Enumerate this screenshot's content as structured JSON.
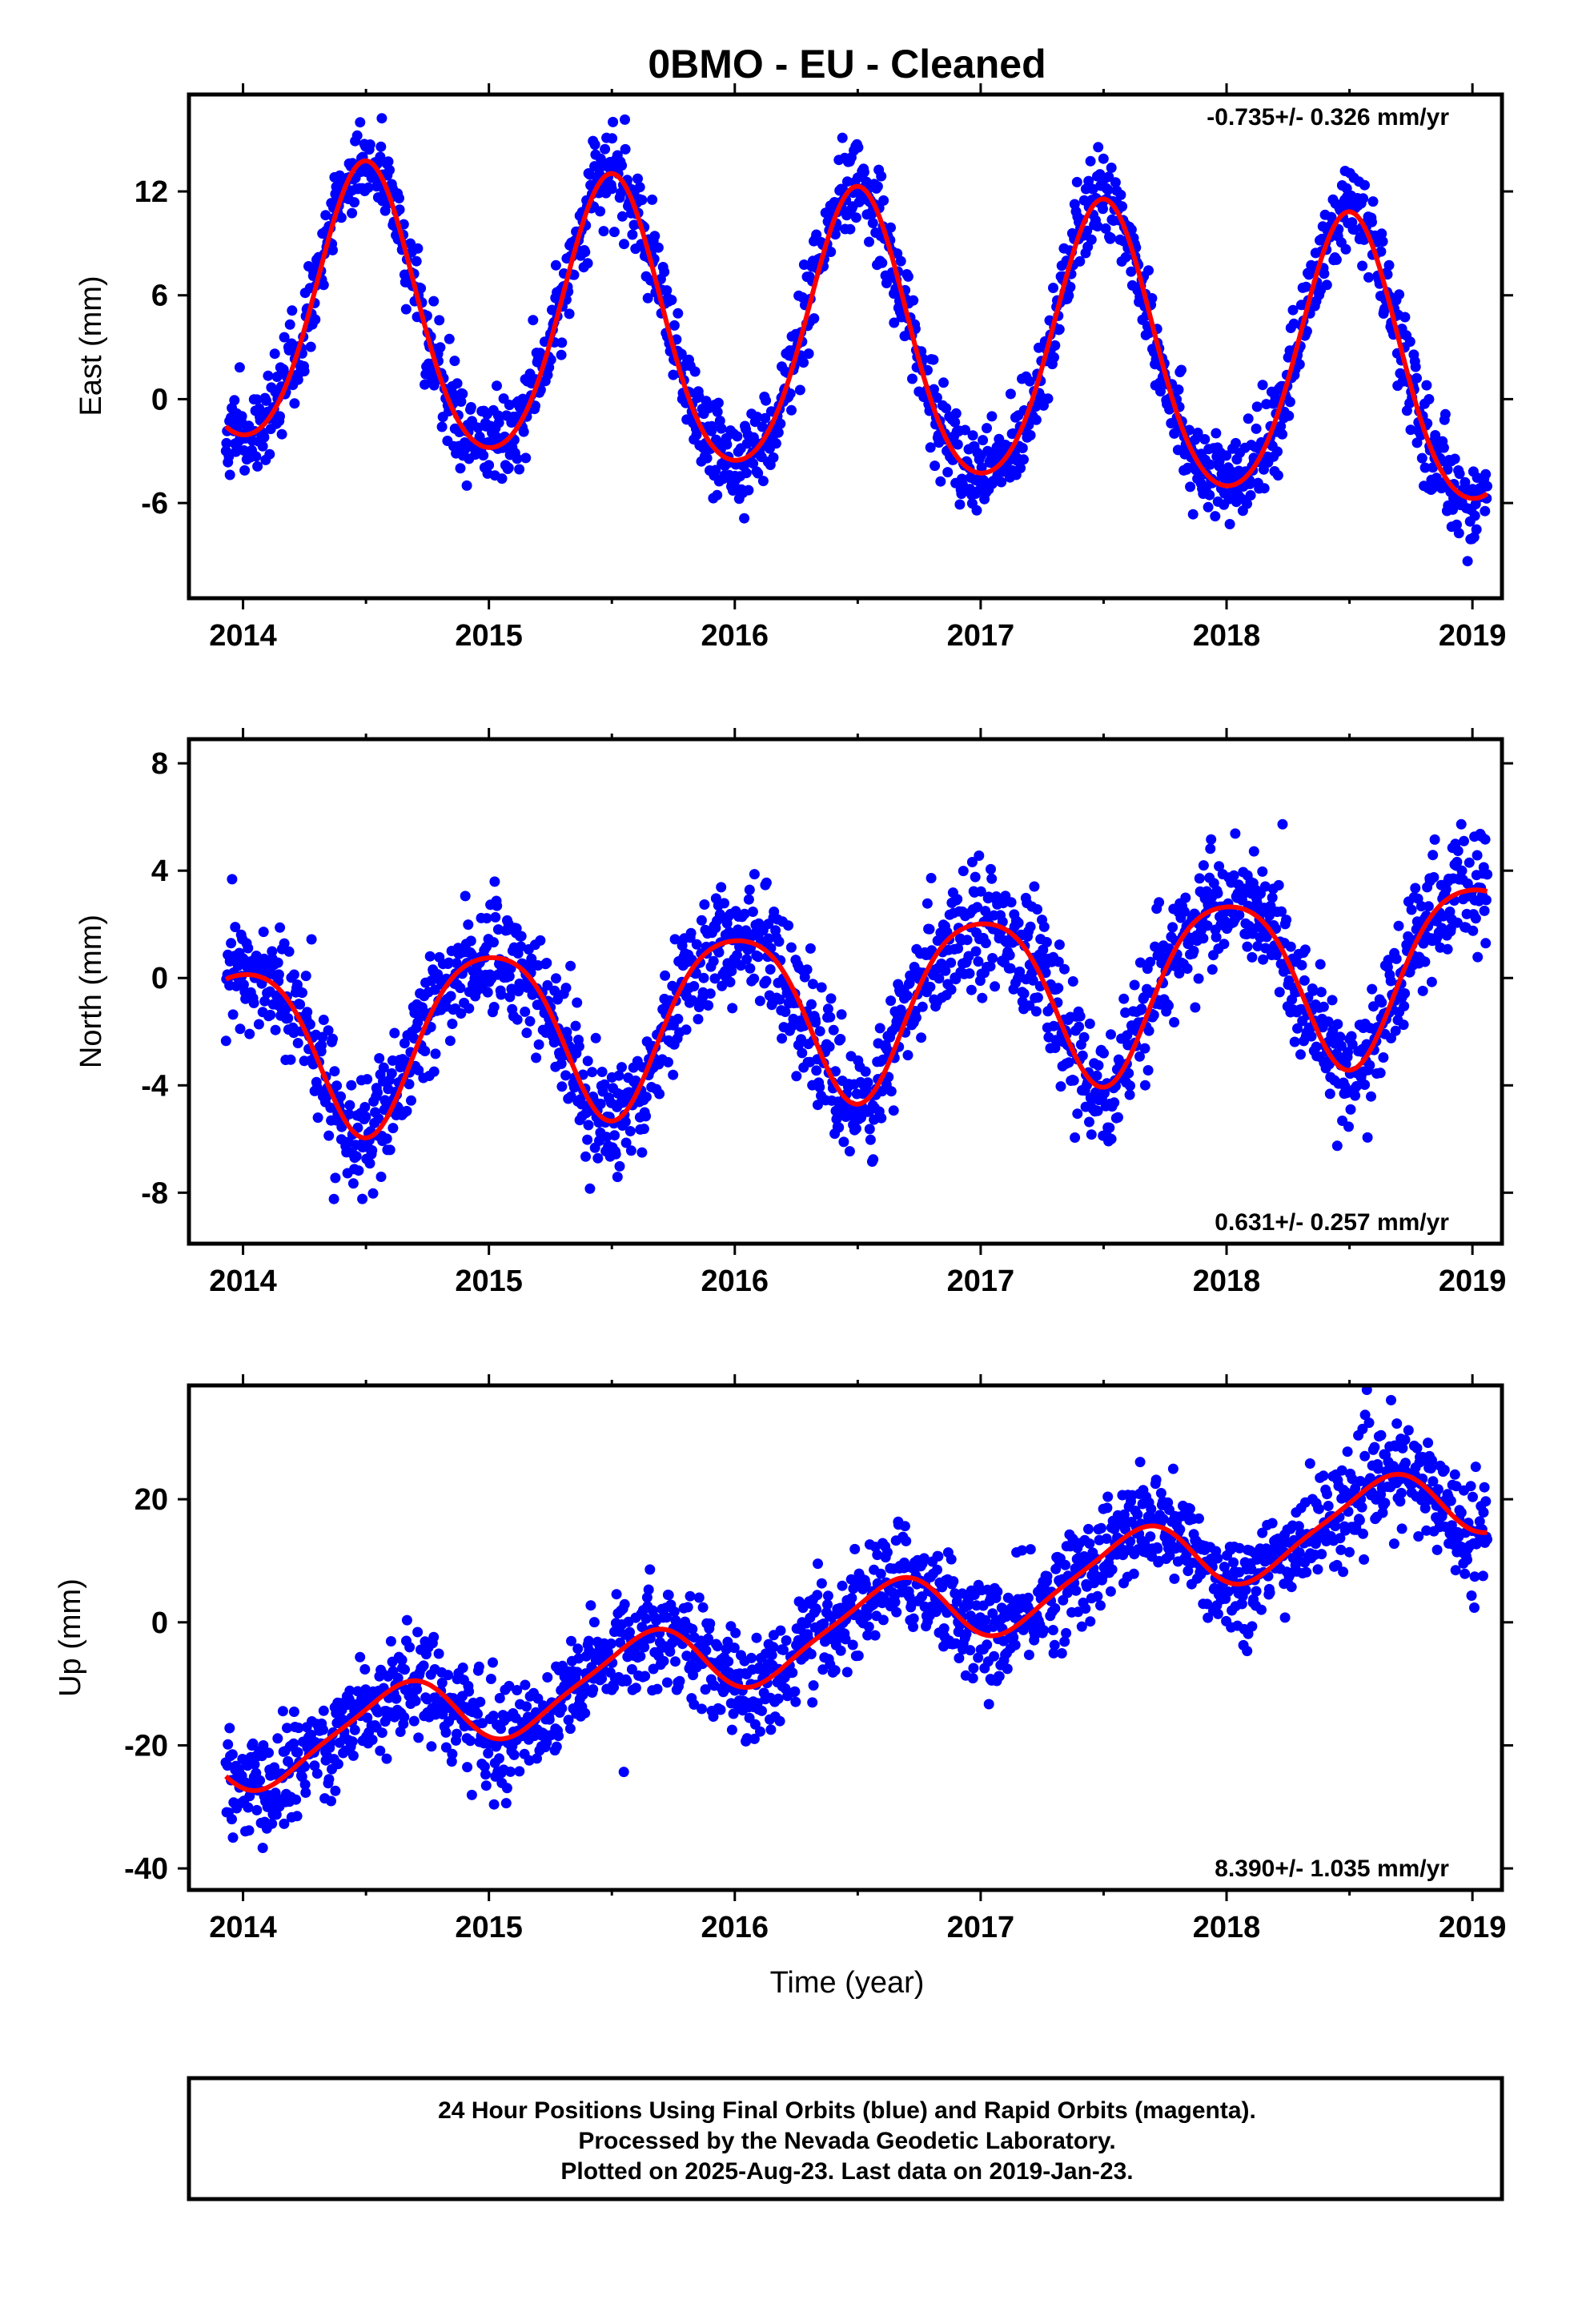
{
  "page": {
    "title": "0BMO  - EU - Cleaned"
  },
  "colors": {
    "final_orbits": "#0000ff",
    "model_fit": "#ff0000",
    "frame": "#000000",
    "background": "#ffffff"
  },
  "chart_data": [
    {
      "type": "scatter",
      "title": "0BMO  - EU - Cleaned",
      "ylabel": "East (mm)",
      "xlabel": "",
      "rate_label": "-0.735+/- 0.326 mm/yr",
      "rate_position": "top-right",
      "xlim": [
        2013.78,
        2019.12
      ],
      "ylim": [
        -11.5,
        17.6
      ],
      "xticks": [
        2014,
        2015,
        2016,
        2017,
        2018,
        2019
      ],
      "xtick_labels": [
        "2014",
        "2015",
        "2016",
        "2017",
        "2018",
        "2019"
      ],
      "yticks": [
        -6,
        0,
        6,
        12
      ],
      "ytick_labels": [
        "-6",
        "0",
        "6",
        "12"
      ],
      "grid": false,
      "time_range": [
        2013.93,
        2019.06
      ],
      "fit": {
        "offset": 3.3,
        "trend": -0.735,
        "ref_year": 2016.5,
        "annual_cos": -8.1,
        "annual_sin": 0,
        "semiannual_cos": 0.9,
        "semiannual_sin": 0
      },
      "scatter_sd": 1.3,
      "series": [
        {
          "name": "Final Orbits (blue)",
          "color": "#0000ff",
          "marker": "dot",
          "approx_count": 1750
        },
        {
          "name": "Model fit",
          "color": "#ff0000",
          "marker": "line"
        }
      ]
    },
    {
      "type": "scatter",
      "ylabel": "North (mm)",
      "xlabel": "",
      "rate_label": "0.631+/- 0.257 mm/yr",
      "rate_position": "bottom-right",
      "xlim": [
        2013.78,
        2019.12
      ],
      "ylim": [
        -9.9,
        8.9
      ],
      "xticks": [
        2014,
        2015,
        2016,
        2017,
        2018,
        2019
      ],
      "xtick_labels": [
        "2014",
        "2015",
        "2016",
        "2017",
        "2018",
        "2019"
      ],
      "yticks": [
        -8,
        -4,
        0,
        4,
        8
      ],
      "ytick_labels": [
        "-8",
        "-4",
        "0",
        "4",
        "8"
      ],
      "grid": false,
      "time_range": [
        2013.93,
        2019.06
      ],
      "fit": {
        "offset": -1.0,
        "trend": 0.631,
        "ref_year": 2016.5,
        "annual_cos": 3.2,
        "annual_sin": 0,
        "semiannual_cos": -0.5,
        "semiannual_sin": 0
      },
      "scatter_sd": 1.1,
      "series": [
        {
          "name": "Final Orbits (blue)",
          "color": "#0000ff",
          "marker": "dot",
          "approx_count": 1750
        },
        {
          "name": "Model fit",
          "color": "#ff0000",
          "marker": "line"
        }
      ]
    },
    {
      "type": "scatter",
      "ylabel": "Up (mm)",
      "xlabel": "Time (year)",
      "rate_label": "8.390+/- 1.035 mm/yr",
      "rate_position": "bottom-right",
      "xlim": [
        2013.78,
        2019.12
      ],
      "ylim": [
        -43.5,
        38.5
      ],
      "xticks": [
        2014,
        2015,
        2016,
        2017,
        2018,
        2019
      ],
      "xtick_labels": [
        "2014",
        "2015",
        "2016",
        "2017",
        "2018",
        "2019"
      ],
      "yticks": [
        -40,
        -20,
        0,
        20
      ],
      "ytick_labels": [
        "-40",
        "-20",
        "0",
        "20"
      ],
      "grid": false,
      "time_range": [
        2013.93,
        2019.06
      ],
      "fit": {
        "offset": -0.5,
        "trend": 8.39,
        "ref_year": 2016.5,
        "annual_cos": -4.3,
        "annual_sin": -4.0,
        "semiannual_cos": -1.2,
        "semiannual_sin": 0
      },
      "scatter_sd": 4.2,
      "series": [
        {
          "name": "Final Orbits (blue)",
          "color": "#0000ff",
          "marker": "dot",
          "approx_count": 1750
        },
        {
          "name": "Model fit",
          "color": "#ff0000",
          "marker": "line"
        }
      ]
    }
  ],
  "footer": {
    "line1": "24 Hour Positions Using Final Orbits (blue) and Rapid Orbits (magenta).",
    "line2": "Processed by the Nevada Geodetic Laboratory.",
    "line3": "Plotted on 2025-Aug-23. Last data on 2019-Jan-23."
  }
}
